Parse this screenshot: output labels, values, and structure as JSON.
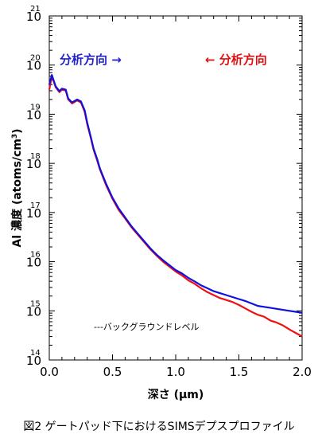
{
  "chart_data": {
    "type": "line",
    "title": "",
    "caption": "図2 ゲートパッド下におけるSIMSデプスプロファイル",
    "xlabel": "深さ (μm)",
    "ylabel": "Al 濃度 (atoms/cm³)",
    "ylabel_parts": {
      "element": "Al",
      "kanji": "濃度",
      "unit_main": "(atoms/cm",
      "unit_sup": "3",
      "unit_close": ")"
    },
    "xlim": [
      0,
      2.0
    ],
    "ylim_log10": [
      14,
      21
    ],
    "y_scale": "log",
    "x_ticks": [
      "0.0",
      "0.5",
      "1.0",
      "1.5",
      "2.0"
    ],
    "y_ticks": [
      {
        "base": "10",
        "exp": "14"
      },
      {
        "base": "10",
        "exp": "15"
      },
      {
        "base": "10",
        "exp": "16"
      },
      {
        "base": "10",
        "exp": "17"
      },
      {
        "base": "10",
        "exp": "18"
      },
      {
        "base": "10",
        "exp": "19"
      },
      {
        "base": "10",
        "exp": "20"
      },
      {
        "base": "10",
        "exp": "21"
      }
    ],
    "annotations": {
      "left_direction": "分析方向 →",
      "right_direction": "← 分析方向",
      "background_note": "---バックグラウンドレベル"
    },
    "series": [
      {
        "color": "#ee1111",
        "x": [
          0.0,
          0.02,
          0.05,
          0.08,
          0.1,
          0.13,
          0.15,
          0.18,
          0.2,
          0.22,
          0.25,
          0.28,
          0.3,
          0.33,
          0.35,
          0.38,
          0.4,
          0.45,
          0.5,
          0.55,
          0.6,
          0.65,
          0.7,
          0.75,
          0.8,
          0.85,
          0.9,
          0.95,
          1.0,
          1.05,
          1.1,
          1.15,
          1.2,
          1.25,
          1.3,
          1.35,
          1.4,
          1.45,
          1.5,
          1.55,
          1.6,
          1.65,
          1.7,
          1.75,
          1.8,
          1.85,
          1.9,
          1.95,
          2.0
        ],
        "log10_y": [
          19.5,
          19.78,
          19.55,
          19.45,
          19.5,
          19.48,
          19.3,
          19.22,
          19.25,
          19.28,
          19.24,
          19.05,
          18.8,
          18.5,
          18.28,
          18.05,
          17.88,
          17.55,
          17.28,
          17.05,
          16.88,
          16.7,
          16.55,
          16.4,
          16.25,
          16.12,
          16.0,
          15.9,
          15.8,
          15.72,
          15.62,
          15.55,
          15.46,
          15.38,
          15.32,
          15.26,
          15.22,
          15.18,
          15.12,
          15.05,
          14.98,
          14.92,
          14.88,
          14.8,
          14.76,
          14.7,
          14.62,
          14.55,
          14.48
        ]
      },
      {
        "color": "#1111dd",
        "x": [
          0.0,
          0.02,
          0.05,
          0.08,
          0.1,
          0.13,
          0.15,
          0.18,
          0.2,
          0.22,
          0.25,
          0.28,
          0.3,
          0.33,
          0.35,
          0.38,
          0.4,
          0.45,
          0.5,
          0.55,
          0.6,
          0.65,
          0.7,
          0.75,
          0.8,
          0.85,
          0.9,
          0.95,
          1.0,
          1.05,
          1.1,
          1.15,
          1.2,
          1.25,
          1.3,
          1.35,
          1.4,
          1.45,
          1.5,
          1.55,
          1.6,
          1.65,
          1.7,
          1.75,
          1.8,
          1.85,
          1.9,
          1.95,
          2.0
        ],
        "log10_y": [
          19.6,
          19.8,
          19.57,
          19.47,
          19.52,
          19.5,
          19.32,
          19.24,
          19.27,
          19.3,
          19.26,
          19.08,
          18.83,
          18.52,
          18.3,
          18.08,
          17.9,
          17.58,
          17.3,
          17.08,
          16.9,
          16.72,
          16.57,
          16.42,
          16.27,
          16.14,
          16.03,
          15.93,
          15.83,
          15.76,
          15.67,
          15.6,
          15.52,
          15.46,
          15.4,
          15.36,
          15.32,
          15.28,
          15.24,
          15.2,
          15.15,
          15.1,
          15.08,
          15.06,
          15.04,
          15.02,
          15.0,
          14.98,
          14.96
        ]
      }
    ]
  }
}
